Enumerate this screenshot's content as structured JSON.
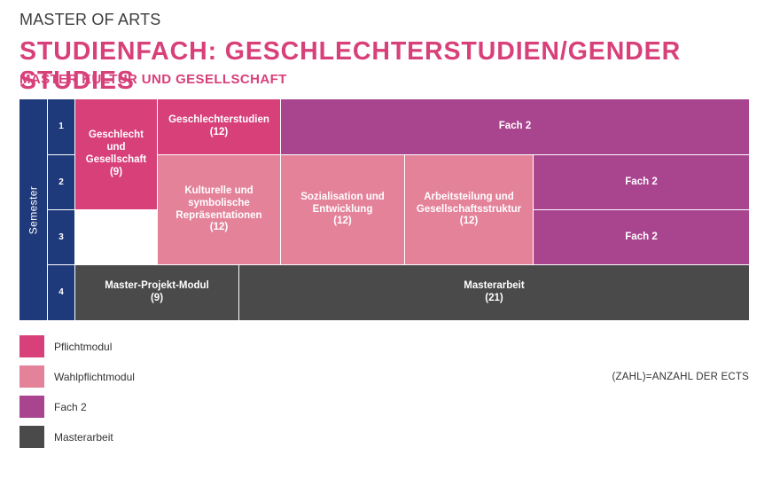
{
  "header": {
    "degree": "MASTER OF ARTS",
    "title": "STUDIENFACH: GESCHLECHTERSTUDIEN/GENDER STUDIES",
    "subtitle": "MASTER KULTUR UND GESELLSCHAFT"
  },
  "grid": {
    "axis_label": "Semester",
    "rows": [
      "1",
      "2",
      "3",
      "4"
    ],
    "modules": {
      "geschlecht": {
        "label": "Geschlecht und Gesellschaft",
        "ects": "(9)"
      },
      "geschlechterstudien": {
        "label": "Geschlechterstudien",
        "ects": "(12)"
      },
      "fach2_row1": {
        "label": "Fach 2"
      },
      "kulturelle": {
        "label": "Kulturelle und symbolische Repräsentationen",
        "ects": "(12)"
      },
      "sozialisation": {
        "label": "Sozialisation und Entwicklung",
        "ects": "(12)"
      },
      "arbeitsteilung": {
        "label": "Arbeitsteilung und Gesellschaftsstruktur",
        "ects": "(12)"
      },
      "fach2_row2": {
        "label": "Fach 2"
      },
      "fach2_row3": {
        "label": "Fach 2"
      },
      "projekt": {
        "label": "Master-Projekt-Modul",
        "ects": "(9)"
      },
      "masterarbeit": {
        "label": "Masterarbeit",
        "ects": "(21)"
      }
    }
  },
  "legend": [
    {
      "label": "Pflichtmodul",
      "color": "#d8407a"
    },
    {
      "label": "Wahlpflichtmodul",
      "color": "#e4829a"
    },
    {
      "label": "Fach 2",
      "color": "#a9448f"
    },
    {
      "label": "Masterarbeit",
      "color": "#4a4a4a"
    }
  ],
  "note": "(ZAHL)=ANZAHL DER ECTS"
}
